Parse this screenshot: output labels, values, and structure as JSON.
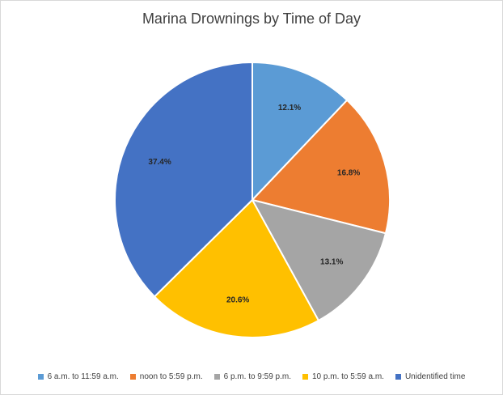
{
  "chart_data": {
    "type": "pie",
    "title": "Marina Drownings by Time of Day",
    "categories": [
      "6 a.m. to 11:59 a.m.",
      "noon to 5:59 p.m.",
      "6 p.m. to 9:59 p.m.",
      "10 p.m. to 5:59 a.m.",
      "Unidentified time"
    ],
    "values": [
      12.1,
      16.8,
      13.1,
      20.6,
      37.4
    ],
    "data_labels": [
      "12.1%",
      "16.8%",
      "13.1%",
      "20.6%",
      "37.4%"
    ],
    "colors": [
      "#5B9BD5",
      "#ED7D31",
      "#A5A5A5",
      "#FFC000",
      "#4472C4"
    ],
    "legend_position": "bottom",
    "start_angle": "12 o'clock",
    "direction": "clockwise"
  }
}
